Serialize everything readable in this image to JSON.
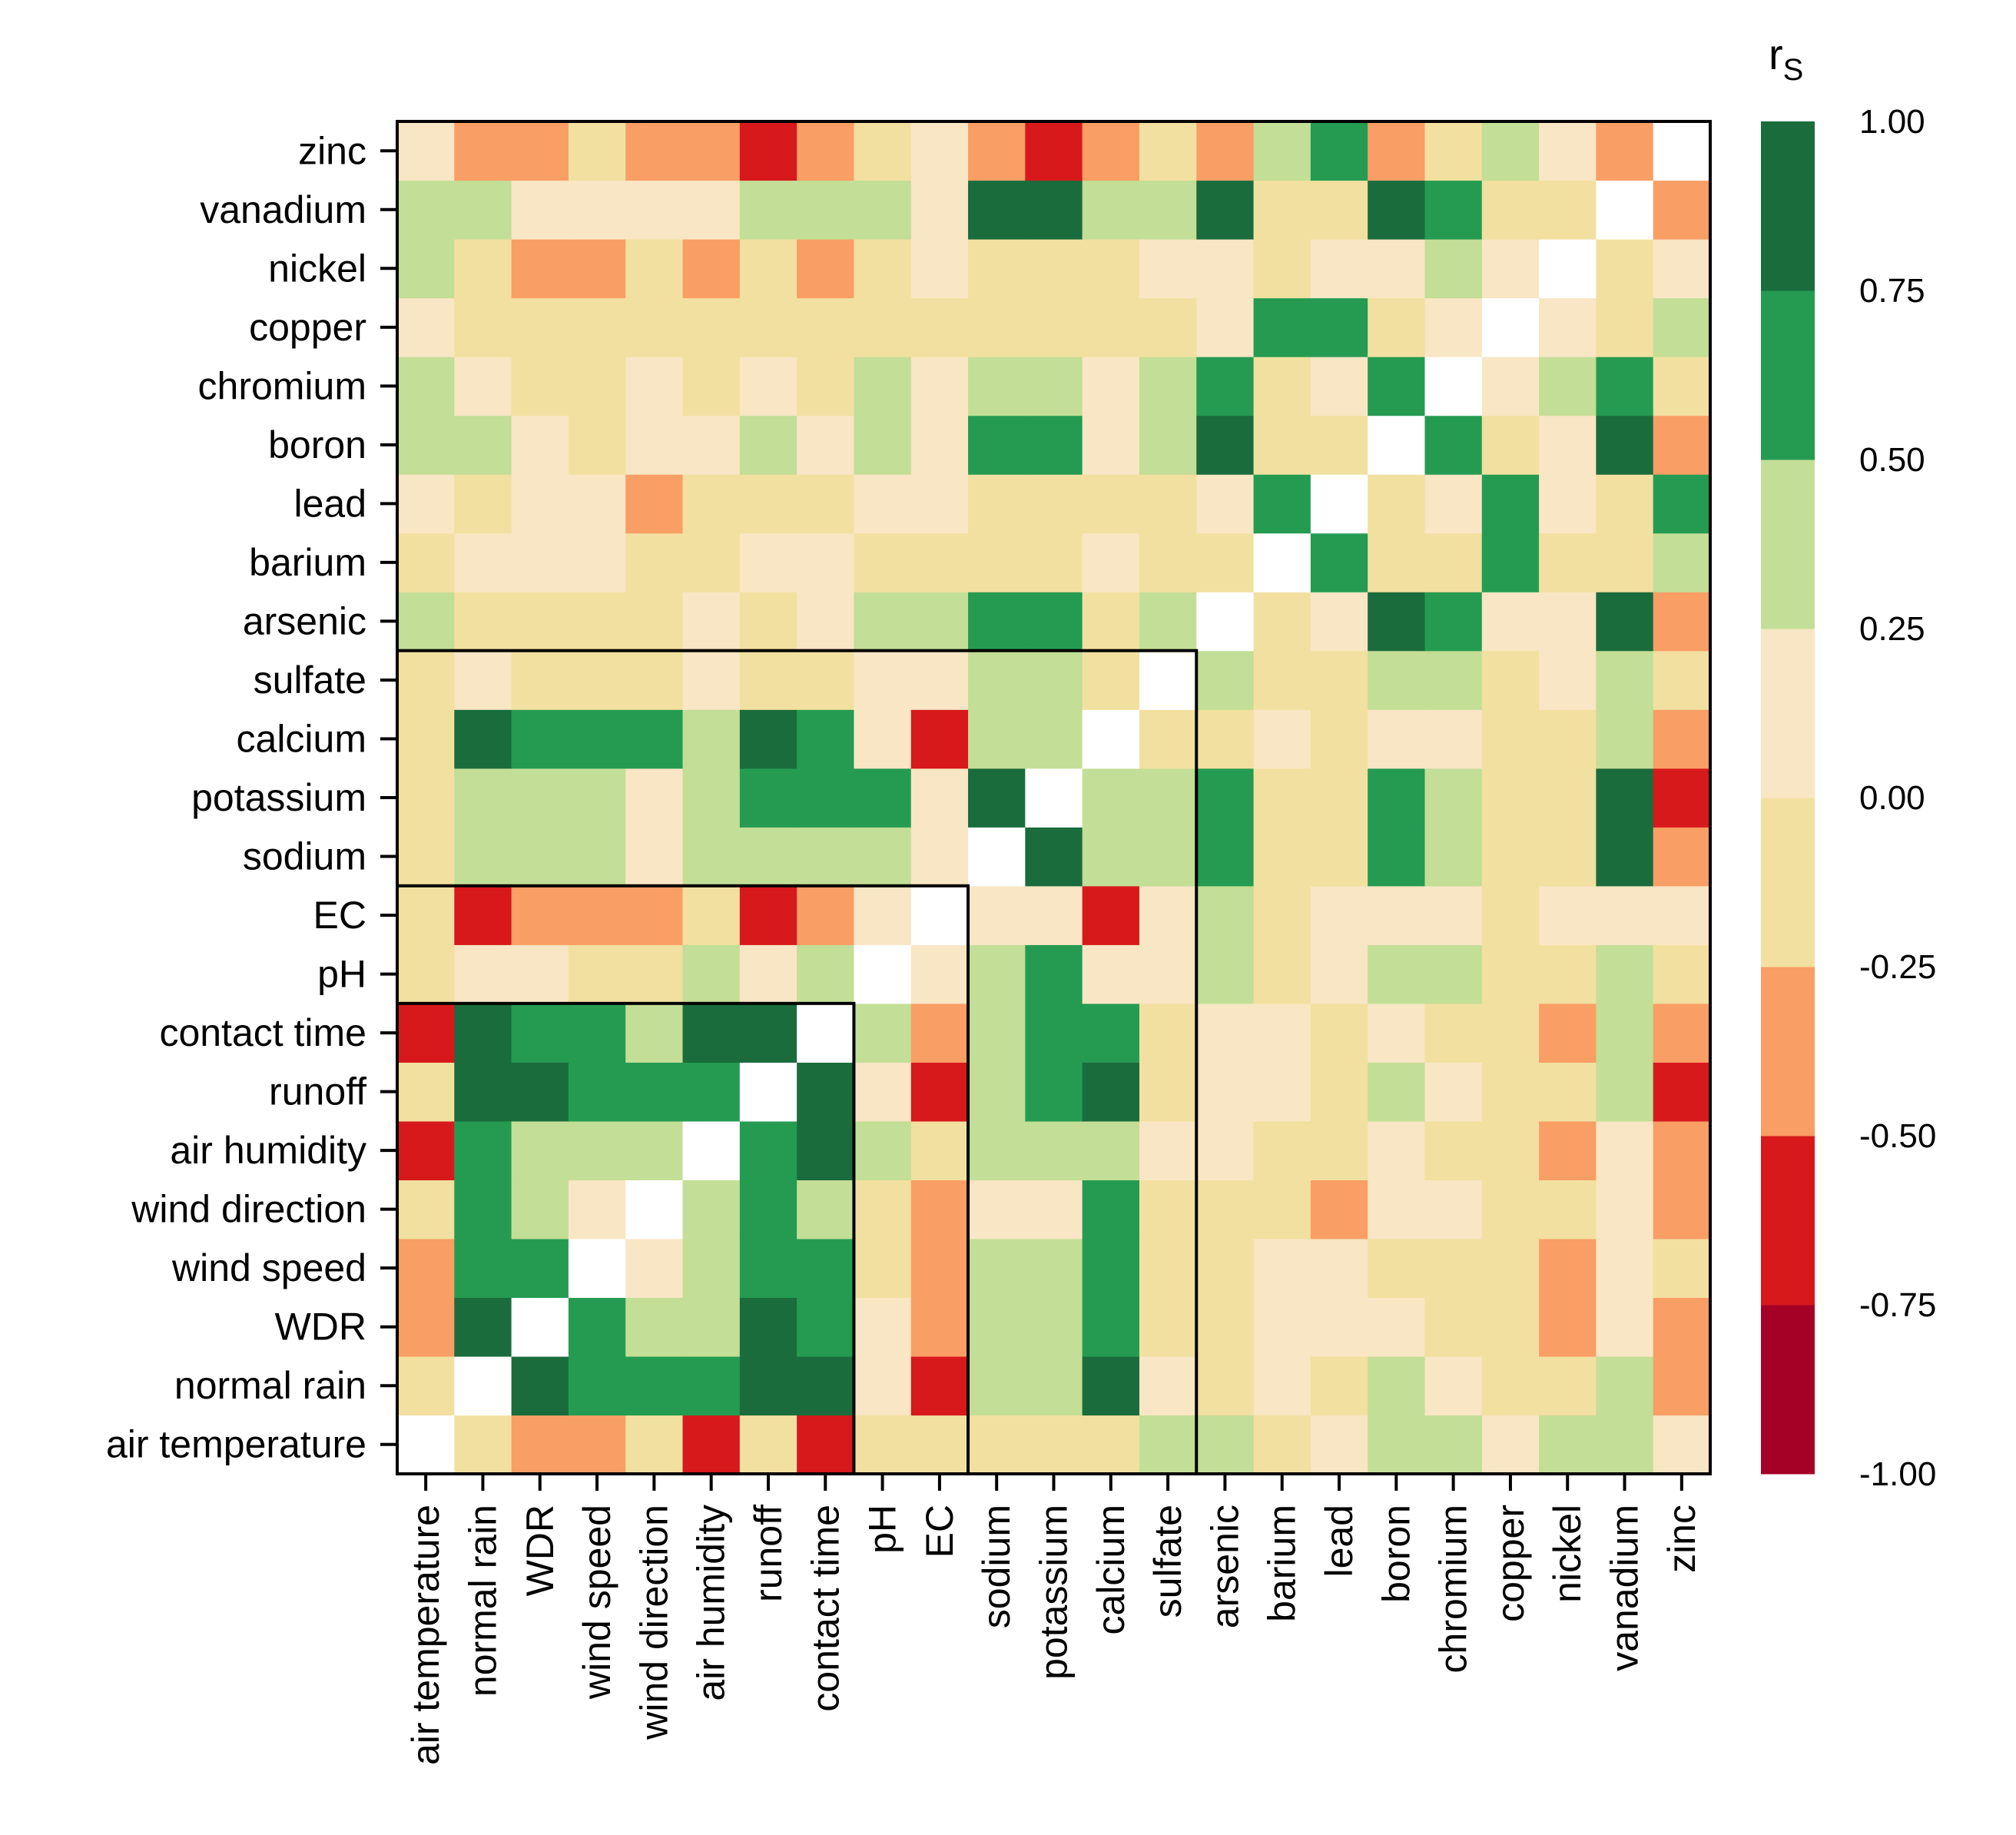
{
  "chart_data": {
    "type": "heatmap",
    "title": "",
    "xlabel": "",
    "ylabel": "",
    "variables": [
      "air temperature",
      "normal rain",
      "WDR",
      "wind speed",
      "wind direction",
      "air humidity",
      "runoff",
      "contact time",
      "pH",
      "EC",
      "sodium",
      "potassium",
      "calcium",
      "sulfate",
      "arsenic",
      "barium",
      "lead",
      "boron",
      "chromium",
      "copper",
      "nickel",
      "vanadium",
      "zinc"
    ],
    "values_note_bins": "values are Spearman rs, binned to the colorbar levels",
    "values": [
      [
        1.0,
        -0.1,
        -0.4,
        -0.4,
        -0.1,
        -0.6,
        -0.1,
        -0.6,
        -0.1,
        -0.1,
        -0.1,
        -0.1,
        -0.1,
        0.4,
        0.4,
        -0.1,
        0.1,
        0.4,
        0.4,
        0.1,
        0.4,
        0.4,
        0.1
      ],
      [
        -0.1,
        1.0,
        0.9,
        0.6,
        0.6,
        0.6,
        0.9,
        0.9,
        0.1,
        -0.6,
        0.4,
        0.4,
        0.9,
        0.1,
        -0.1,
        0.1,
        -0.1,
        0.4,
        0.1,
        -0.1,
        -0.1,
        0.4,
        -0.4
      ],
      [
        -0.4,
        0.9,
        1.0,
        0.6,
        0.4,
        0.4,
        0.9,
        0.6,
        0.1,
        -0.4,
        0.4,
        0.4,
        0.6,
        -0.1,
        -0.1,
        0.1,
        0.1,
        0.1,
        -0.1,
        -0.1,
        -0.4,
        0.1,
        -0.4
      ],
      [
        -0.4,
        0.6,
        0.6,
        1.0,
        0.1,
        0.4,
        0.6,
        0.6,
        -0.1,
        -0.4,
        0.4,
        0.4,
        0.6,
        -0.1,
        -0.1,
        0.1,
        0.1,
        -0.1,
        -0.1,
        -0.1,
        -0.4,
        0.1,
        -0.1
      ],
      [
        -0.1,
        0.6,
        0.4,
        0.1,
        1.0,
        0.4,
        0.6,
        0.4,
        -0.1,
        -0.4,
        0.1,
        0.1,
        0.6,
        -0.1,
        -0.1,
        -0.1,
        -0.4,
        0.1,
        0.1,
        -0.1,
        -0.1,
        0.1,
        -0.4
      ],
      [
        -0.6,
        0.6,
        0.4,
        0.4,
        0.4,
        1.0,
        0.6,
        0.9,
        0.4,
        -0.1,
        0.4,
        0.4,
        0.4,
        0.1,
        0.1,
        -0.1,
        -0.1,
        0.1,
        -0.1,
        -0.1,
        -0.4,
        0.1,
        -0.4
      ],
      [
        -0.1,
        0.9,
        0.9,
        0.6,
        0.6,
        0.6,
        1.0,
        0.9,
        0.1,
        -0.6,
        0.4,
        0.6,
        0.9,
        -0.1,
        0.1,
        0.1,
        -0.1,
        0.4,
        0.1,
        -0.1,
        -0.1,
        0.4,
        -0.6
      ],
      [
        -0.6,
        0.9,
        0.6,
        0.6,
        0.4,
        0.9,
        0.9,
        1.0,
        0.4,
        -0.4,
        0.4,
        0.6,
        0.6,
        -0.1,
        0.1,
        0.1,
        -0.1,
        0.1,
        -0.1,
        -0.1,
        -0.4,
        0.4,
        -0.4
      ],
      [
        -0.1,
        0.1,
        0.1,
        -0.1,
        -0.1,
        0.4,
        0.1,
        0.4,
        1.0,
        0.1,
        0.4,
        0.6,
        0.1,
        0.1,
        0.4,
        -0.1,
        0.1,
        0.4,
        0.4,
        -0.1,
        -0.1,
        0.4,
        -0.1
      ],
      [
        -0.1,
        -0.6,
        -0.4,
        -0.4,
        -0.4,
        -0.1,
        -0.6,
        -0.4,
        0.1,
        1.0,
        0.1,
        0.1,
        -0.6,
        0.1,
        0.4,
        -0.1,
        0.1,
        0.1,
        0.1,
        -0.1,
        0.1,
        0.1,
        0.1
      ],
      [
        -0.1,
        0.4,
        0.4,
        0.4,
        0.1,
        0.4,
        0.4,
        0.4,
        0.4,
        0.1,
        1.0,
        0.9,
        0.4,
        0.4,
        0.6,
        -0.1,
        -0.1,
        0.6,
        0.4,
        -0.1,
        -0.1,
        0.9,
        -0.4
      ],
      [
        -0.1,
        0.4,
        0.4,
        0.4,
        0.1,
        0.4,
        0.6,
        0.6,
        0.6,
        0.1,
        0.9,
        1.0,
        0.4,
        0.4,
        0.6,
        -0.1,
        -0.1,
        0.6,
        0.4,
        -0.1,
        -0.1,
        0.9,
        -0.6
      ],
      [
        -0.1,
        0.9,
        0.6,
        0.6,
        0.6,
        0.4,
        0.9,
        0.6,
        0.1,
        -0.6,
        0.4,
        0.4,
        1.0,
        -0.1,
        -0.1,
        0.1,
        -0.1,
        0.1,
        0.1,
        -0.1,
        -0.1,
        0.4,
        -0.4
      ],
      [
        -0.1,
        0.1,
        -0.1,
        -0.1,
        -0.1,
        0.1,
        -0.1,
        -0.1,
        0.1,
        0.1,
        0.4,
        0.4,
        -0.1,
        1.0,
        0.4,
        -0.1,
        -0.1,
        0.4,
        0.4,
        -0.1,
        0.1,
        0.4,
        -0.1
      ],
      [
        0.4,
        -0.1,
        -0.1,
        -0.1,
        -0.1,
        0.1,
        -0.1,
        0.1,
        0.4,
        0.4,
        0.6,
        0.6,
        -0.1,
        0.4,
        1.0,
        -0.1,
        0.1,
        0.9,
        0.6,
        0.1,
        0.1,
        0.9,
        -0.4
      ],
      [
        -0.1,
        0.1,
        0.1,
        0.1,
        -0.1,
        -0.1,
        0.1,
        0.1,
        -0.1,
        -0.1,
        -0.1,
        -0.1,
        0.1,
        -0.1,
        -0.1,
        1.0,
        0.6,
        -0.1,
        -0.1,
        0.6,
        -0.1,
        -0.1,
        0.4
      ],
      [
        0.1,
        -0.1,
        0.1,
        0.1,
        -0.4,
        -0.1,
        -0.1,
        -0.1,
        0.1,
        0.1,
        -0.1,
        -0.1,
        -0.1,
        -0.1,
        0.1,
        0.6,
        1.0,
        -0.1,
        0.1,
        0.6,
        0.1,
        -0.1,
        0.6
      ],
      [
        0.4,
        0.4,
        0.1,
        -0.1,
        0.1,
        0.1,
        0.4,
        0.1,
        0.4,
        0.1,
        0.6,
        0.6,
        0.1,
        0.4,
        0.9,
        -0.1,
        -0.1,
        1.0,
        0.6,
        -0.1,
        0.1,
        0.9,
        -0.4
      ],
      [
        0.4,
        0.1,
        -0.1,
        -0.1,
        0.1,
        -0.1,
        0.1,
        -0.1,
        0.4,
        0.1,
        0.4,
        0.4,
        0.1,
        0.4,
        0.6,
        -0.1,
        0.1,
        0.6,
        1.0,
        0.1,
        0.4,
        0.6,
        -0.1
      ],
      [
        0.1,
        -0.1,
        -0.1,
        -0.1,
        -0.1,
        -0.1,
        -0.1,
        -0.1,
        -0.1,
        -0.1,
        -0.1,
        -0.1,
        -0.1,
        -0.1,
        0.1,
        0.6,
        0.6,
        -0.1,
        0.1,
        1.0,
        0.1,
        -0.1,
        0.4
      ],
      [
        0.4,
        -0.1,
        -0.4,
        -0.4,
        -0.1,
        -0.4,
        -0.1,
        -0.4,
        -0.1,
        0.1,
        -0.1,
        -0.1,
        -0.1,
        0.1,
        0.1,
        -0.1,
        0.1,
        0.1,
        0.4,
        0.1,
        1.0,
        -0.1,
        0.1
      ],
      [
        0.4,
        0.4,
        0.1,
        0.1,
        0.1,
        0.1,
        0.4,
        0.4,
        0.4,
        0.1,
        0.9,
        0.9,
        0.4,
        0.4,
        0.9,
        -0.1,
        -0.1,
        0.9,
        0.6,
        -0.1,
        -0.1,
        1.0,
        -0.4
      ],
      [
        0.1,
        -0.4,
        -0.4,
        -0.1,
        -0.4,
        -0.4,
        -0.6,
        -0.4,
        -0.1,
        0.1,
        -0.4,
        -0.6,
        -0.4,
        -0.1,
        -0.4,
        0.4,
        0.6,
        -0.4,
        -0.1,
        0.4,
        0.1,
        -0.4,
        1.0
      ]
    ],
    "colorbar": {
      "title": "r",
      "title_subscript": "S",
      "ticks": [
        "1.00",
        "0.75",
        "0.50",
        "0.25",
        "0.00",
        "-0.25",
        "-0.50",
        "-0.75",
        "-1.00"
      ],
      "range": [
        -1,
        1
      ],
      "levels": [
        {
          "min": -1.0,
          "max": -0.75,
          "color": "#a50026"
        },
        {
          "min": -0.75,
          "max": -0.5,
          "color": "#d7191c"
        },
        {
          "min": -0.5,
          "max": -0.25,
          "color": "#f99e65"
        },
        {
          "min": -0.25,
          "max": 0.0,
          "color": "#f2e0a0"
        },
        {
          "min": 0.0,
          "max": 0.25,
          "color": "#f8e6c4"
        },
        {
          "min": 0.25,
          "max": 0.5,
          "color": "#c3de96"
        },
        {
          "min": 0.5,
          "max": 0.75,
          "color": "#259b52"
        },
        {
          "min": 0.75,
          "max": 0.999,
          "color": "#1a6c3c"
        }
      ],
      "diagonal_color": "#ffffff"
    },
    "group_boxes": [
      {
        "from": "air temperature",
        "to": "contact time"
      },
      {
        "from": "air temperature",
        "to": "EC"
      },
      {
        "from": "air temperature",
        "to": "sulfate"
      }
    ]
  }
}
